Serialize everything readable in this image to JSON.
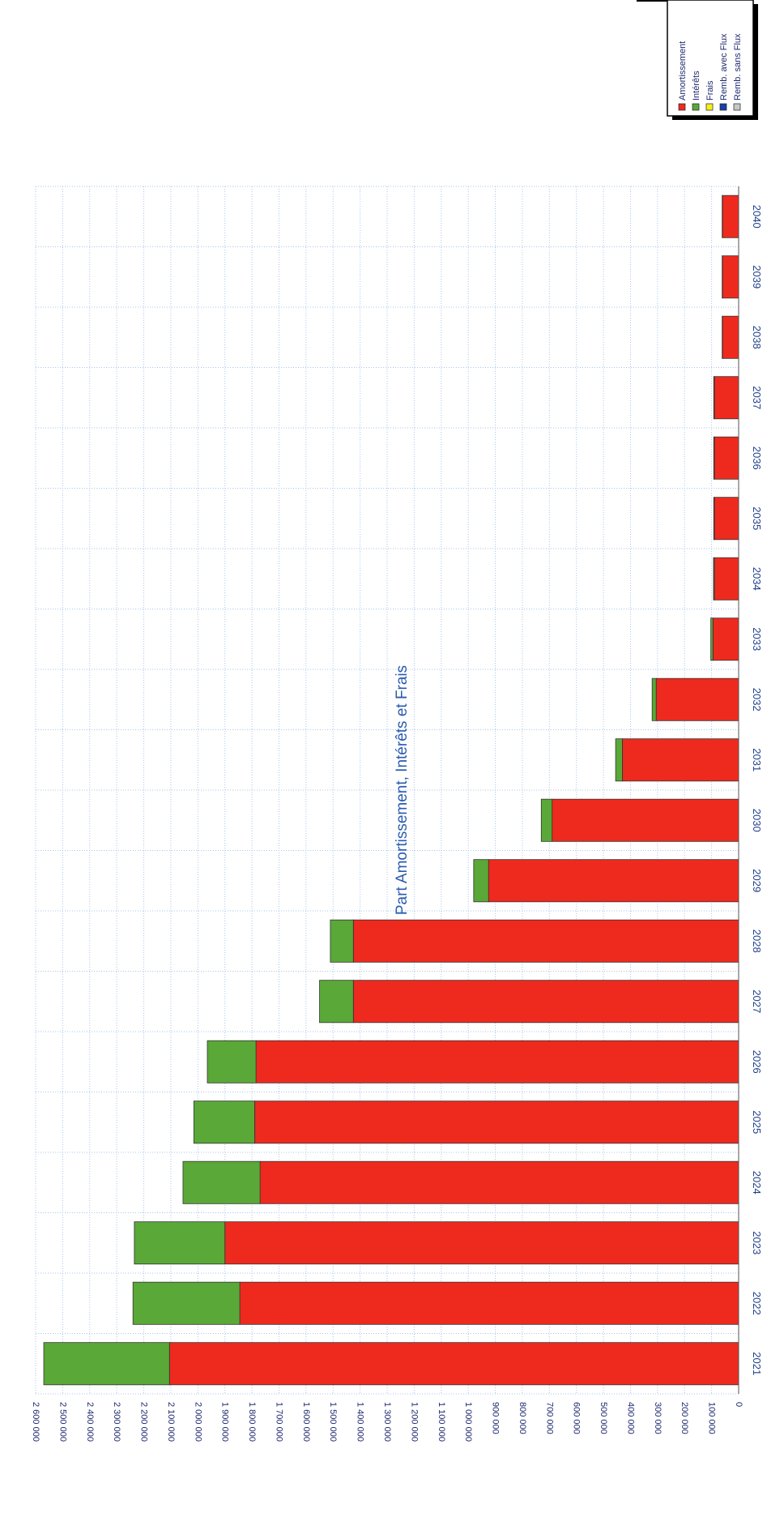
{
  "chart_data": {
    "type": "bar",
    "stacked": true,
    "title": "Part Amortissement, Intérêts et Frais",
    "categories": [
      "2021",
      "2022",
      "2023",
      "2024",
      "2025",
      "2026",
      "2027",
      "2028",
      "2029",
      "2030",
      "2031",
      "2032",
      "2033",
      "2034",
      "2035",
      "2036",
      "2037",
      "2038",
      "2039",
      "2040"
    ],
    "series": [
      {
        "name": "Amortissement",
        "color": "#ee2a1e",
        "values": [
          2105000,
          1845000,
          1900000,
          1770000,
          1790000,
          1785000,
          1425000,
          1425000,
          925000,
          690000,
          430000,
          305000,
          95000,
          90000,
          90000,
          90000,
          90000,
          60000,
          60000,
          60000
        ]
      },
      {
        "name": "Intérêts",
        "color": "#5aa838",
        "values": [
          465000,
          395000,
          335000,
          285000,
          225000,
          180000,
          125000,
          85000,
          55000,
          40000,
          25000,
          15000,
          8000,
          3000,
          2000,
          2000,
          2000,
          1000,
          1000,
          1000
        ]
      },
      {
        "name": "Frais",
        "color": "#f7ee1e",
        "values": [
          0,
          0,
          0,
          0,
          0,
          0,
          0,
          0,
          0,
          0,
          0,
          0,
          0,
          0,
          0,
          0,
          0,
          0,
          0,
          0
        ]
      },
      {
        "name": "Remb. avec Flux",
        "color": "#1c3fa8",
        "values": [
          0,
          0,
          0,
          0,
          0,
          0,
          0,
          0,
          0,
          0,
          0,
          0,
          0,
          0,
          0,
          0,
          0,
          0,
          0,
          0
        ]
      },
      {
        "name": "Remb. sans Flux",
        "color": "#c8c8c8",
        "values": [
          0,
          0,
          0,
          0,
          0,
          0,
          0,
          0,
          0,
          0,
          0,
          0,
          0,
          0,
          0,
          0,
          0,
          0,
          0,
          0
        ]
      }
    ],
    "ylim": [
      0,
      2600000
    ],
    "yticks": [
      0,
      100000,
      200000,
      300000,
      400000,
      500000,
      600000,
      700000,
      800000,
      900000,
      1000000,
      1100000,
      1200000,
      1300000,
      1400000,
      1500000,
      1600000,
      1700000,
      1800000,
      1900000,
      2000000,
      2100000,
      2200000,
      2300000,
      2400000,
      2500000,
      2600000
    ],
    "ytick_labels": [
      "0",
      "100 000",
      "200 000",
      "300 000",
      "400 000",
      "500 000",
      "600 000",
      "700 000",
      "800 000",
      "900 000",
      "1 000 000",
      "1 100 000",
      "1 200 000",
      "1 300 000",
      "1 400 000",
      "1 500 000",
      "1 600 000",
      "1 700 000",
      "1 800 000",
      "1 900 000",
      "2 000 000",
      "2 100 000",
      "2 200 000",
      "2 300 000",
      "2 400 000",
      "2 500 000",
      "2 600 000"
    ],
    "grid": true,
    "legend": "top-right",
    "orientation": "rotated-90"
  }
}
